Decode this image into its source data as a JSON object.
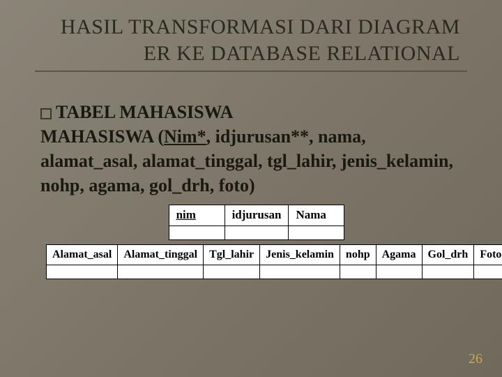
{
  "title": "HASIL TRANSFORMASI DARI DIAGRAM ER KE DATABASE RELATIONAL",
  "bullet_label": "TABEL MAHASISWA",
  "schema_prefix": "MAHASISWA (",
  "schema_pk": "Nim*",
  "schema_rest": ", idjurusan**, nama, alamat_asal, alamat_tinggal, tgl_lahir, jenis_kelamin, nohp, agama, gol_drh, foto)",
  "table1": {
    "columns": [
      "nim",
      "idjurusan",
      "Nama"
    ],
    "pk_index": 0
  },
  "table2": {
    "columns": [
      "Alamat_asal",
      "Alamat_tinggal",
      "Tgl_lahir",
      "Jenis_kelamin",
      "nohp",
      "Agama",
      "Gol_drh",
      "Foto"
    ]
  },
  "page_number": "26",
  "style": {
    "background_gradient": [
      "#8a8578",
      "#7d7668",
      "#6f6a5c"
    ],
    "title_color": "#2a2820",
    "title_fontsize": 30,
    "content_fontsize": 26,
    "table_font": "Times New Roman",
    "table_border_color": "#000000",
    "table_bg": "#ffffff",
    "page_num_color": "#c9a94a",
    "divider_color": "#5a5548"
  }
}
